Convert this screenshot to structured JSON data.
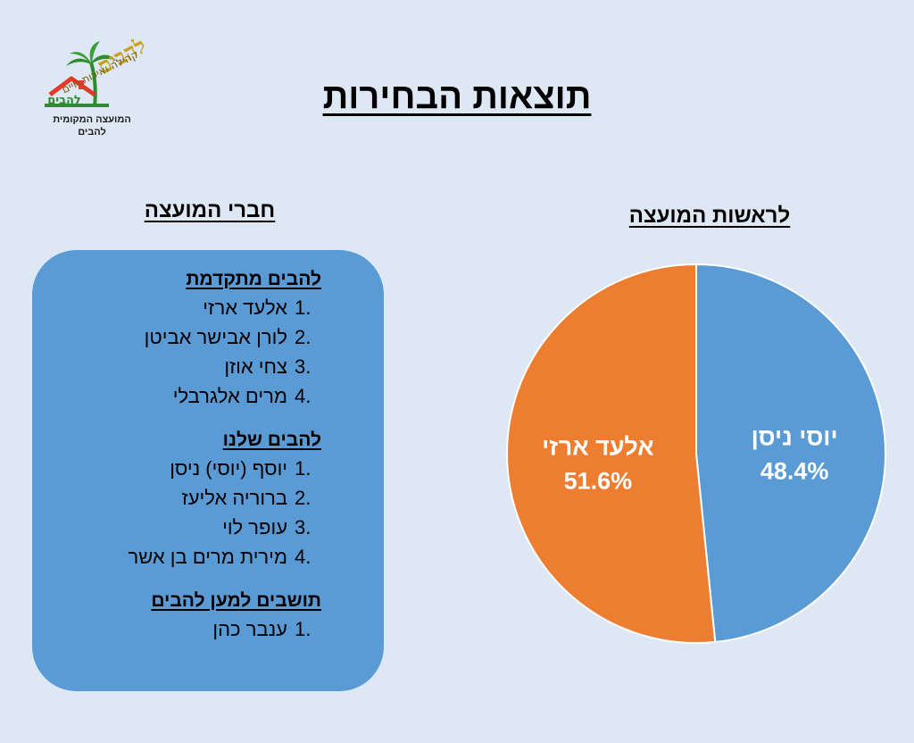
{
  "logo": {
    "brand": "להבים",
    "slogan": "קהילה ואיכות חיים",
    "sign": "להבים",
    "subtitle_line1": "המועצה המקומית",
    "subtitle_line2": "להבים",
    "colors": {
      "gold": "#c9a020",
      "house_red": "#e03a2a",
      "palm_green": "#2e8b2e"
    }
  },
  "page_title": "תוצאות הבחירות",
  "members_section": {
    "title": "חברי המועצה",
    "groups": [
      {
        "title": "להבים מתקדמת",
        "members": [
          {
            "num": "1.",
            "name": "אלעד ארזי"
          },
          {
            "num": "2.",
            "name": "לורן אבישר אביטן"
          },
          {
            "num": "3.",
            "name": "צחי אוזן"
          },
          {
            "num": "4.",
            "name": "מרים אלגרבלי"
          }
        ]
      },
      {
        "title": "להבים שלנו",
        "members": [
          {
            "num": "1.",
            "name": "יוסף (יוסי) ניסן"
          },
          {
            "num": "2.",
            "name": "ברוריה אליעז"
          },
          {
            "num": "3.",
            "name": "עופר לוי"
          },
          {
            "num": "4.",
            "name": "מירית מרים בן אשר"
          }
        ]
      },
      {
        "title": "תושבים למען להבים",
        "members": [
          {
            "num": "1.",
            "name": "ענבר כהן"
          }
        ]
      }
    ],
    "box_color": "#5b9bd5"
  },
  "head_section": {
    "title": "לראשות המועצה"
  },
  "chart_data": {
    "type": "pie",
    "title": "לראשות המועצה",
    "start_angle_deg": 0,
    "direction": "clockwise",
    "slices": [
      {
        "name": "יוסי ניסן",
        "value": 48.4,
        "label": "48.4%",
        "color": "#5b9bd5"
      },
      {
        "name": "אלעד ארזי",
        "value": 51.6,
        "label": "51.6%",
        "color": "#ed7d31"
      }
    ]
  }
}
